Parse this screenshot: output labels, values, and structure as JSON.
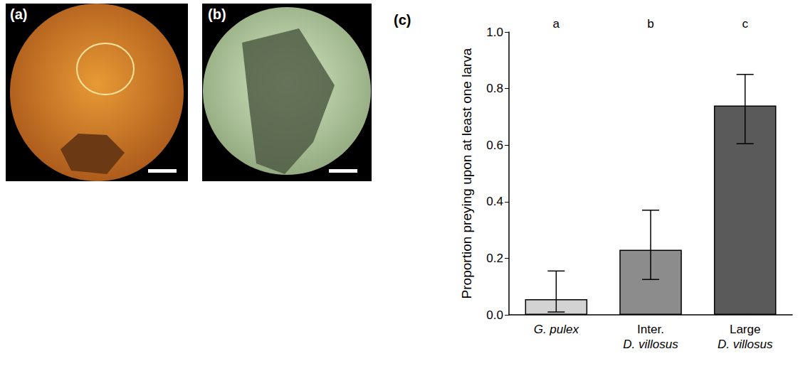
{
  "panels": [
    {
      "label": "(a)"
    },
    {
      "label": "(b)"
    }
  ],
  "chart_data": {
    "type": "bar",
    "panel_label": "(c)",
    "categories": [
      "G. pulex",
      "Inter. D. villosus",
      "Large D. villosus"
    ],
    "values": [
      0.055,
      0.23,
      0.74
    ],
    "errors": [
      [
        0.01,
        0.155
      ],
      [
        0.125,
        0.37
      ],
      [
        0.605,
        0.85
      ]
    ],
    "colors": [
      "#d3d3d3",
      "#8c8c8c",
      "#5a5a5a"
    ],
    "annotations": [
      "a",
      "b",
      "c"
    ],
    "ylabel": "Proportion preying upon at least one larva",
    "ylim": [
      0,
      1
    ],
    "yticks": [
      {
        "value": 0,
        "label": "0.0"
      },
      0.2,
      0.4,
      0.6,
      0.8,
      {
        "value": 1,
        "label": "1.0"
      }
    ]
  }
}
